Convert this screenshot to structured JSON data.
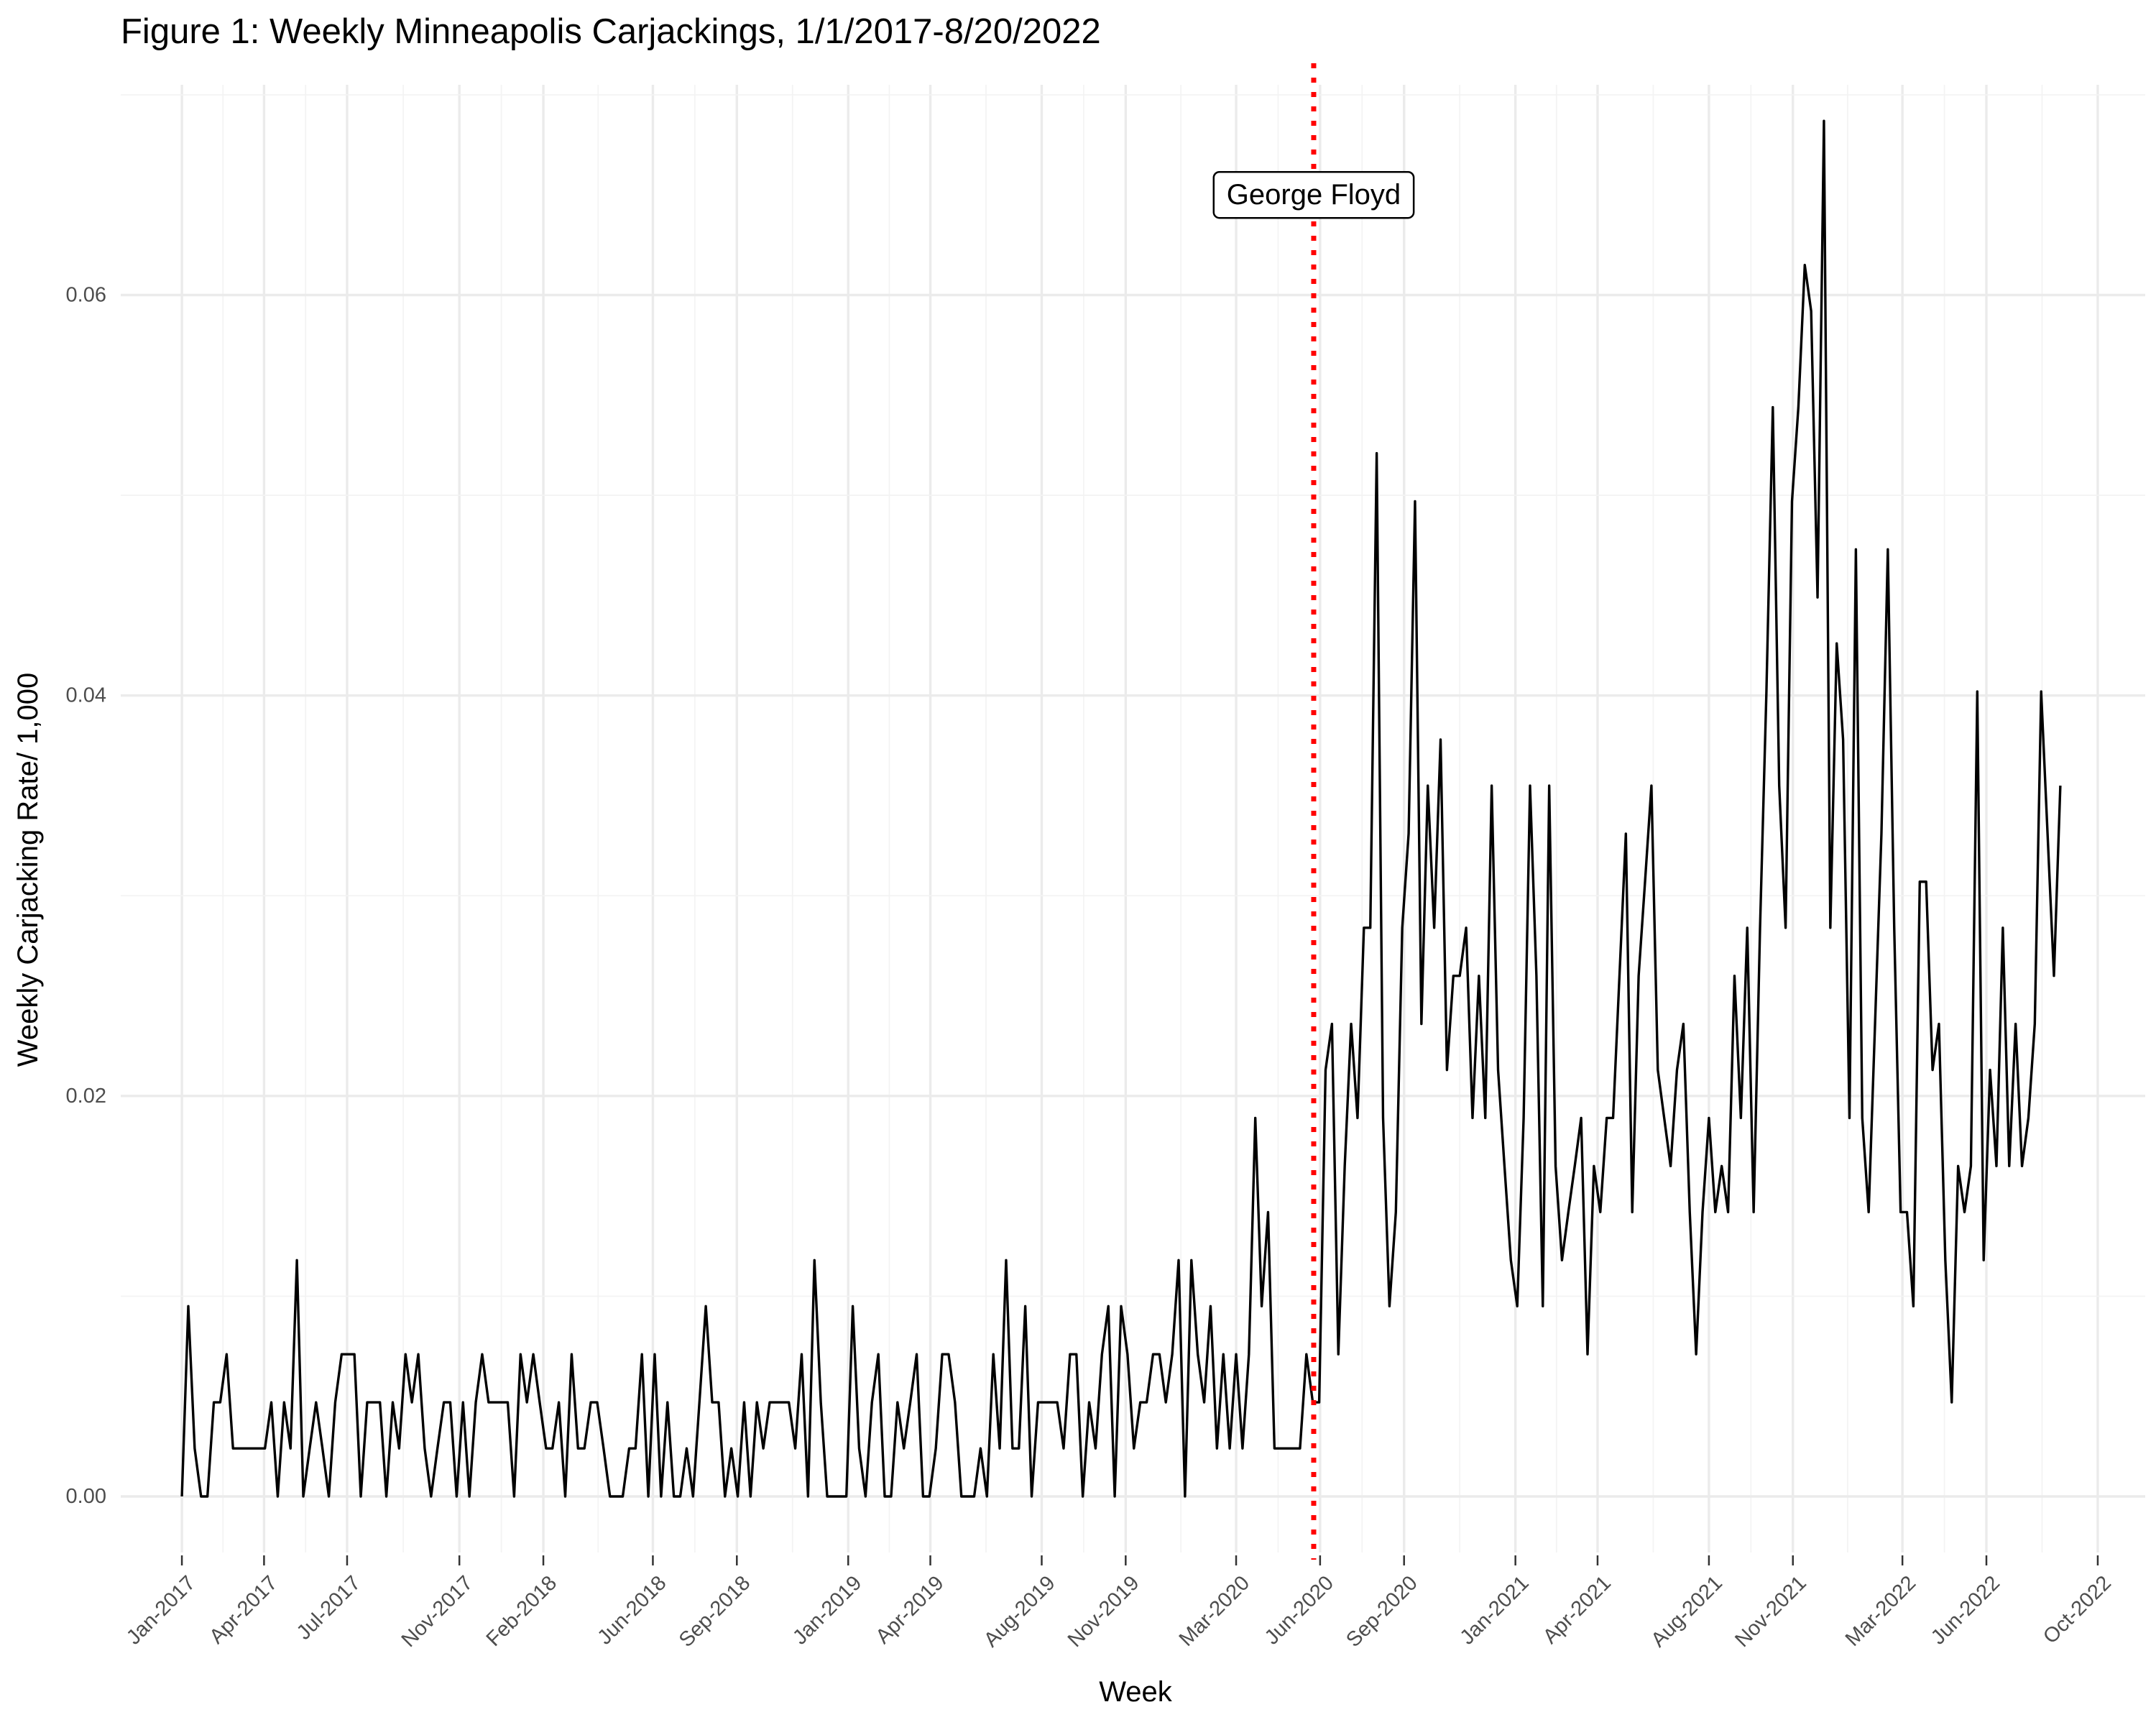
{
  "chart_data": {
    "type": "line",
    "title": "Figure 1: Weekly Minneapolis Carjackings, 1/1/2017-8/20/2022",
    "xlabel": "Week",
    "ylabel": "Weekly Carjacking Rate/ 1,000",
    "x_ticks": [
      "Jan-2017",
      "Apr-2017",
      "Jul-2017",
      "Nov-2017",
      "Feb-2018",
      "Jun-2018",
      "Sep-2018",
      "Jan-2019",
      "Apr-2019",
      "Aug-2019",
      "Nov-2019",
      "Mar-2020",
      "Jun-2020",
      "Sep-2020",
      "Jan-2021",
      "Apr-2021",
      "Aug-2021",
      "Nov-2021",
      "Mar-2022",
      "Jun-2022",
      "Oct-2022"
    ],
    "y_ticks": [
      "0.00",
      "0.02",
      "0.04",
      "0.06"
    ],
    "ylim": [
      -0.0028,
      0.0705
    ],
    "xlim": [
      "2016-10-26",
      "2022-11-22"
    ],
    "grid": true,
    "annotation": {
      "label": "George Floyd",
      "x": "2020-05-25",
      "y": 0.065,
      "line_color": "#ff0000",
      "line_style": "dotted"
    },
    "series": [
      {
        "color": "#000000",
        "start_date": "2017-01-01",
        "interval_days": 7,
        "values": [
          0,
          0.0095,
          0.0024,
          0,
          0,
          0.0047,
          0.0047,
          0.0071,
          0.0024,
          0.0024,
          0.0024,
          0.0024,
          0.0024,
          0.0024,
          0.0047,
          0,
          0.0047,
          0.0024,
          0.0118,
          0,
          0.0024,
          0.0047,
          0.0024,
          0,
          0.0047,
          0.0071,
          0.0071,
          0.0071,
          0,
          0.0047,
          0.0047,
          0.0047,
          0,
          0.0047,
          0.0024,
          0.0071,
          0.0047,
          0.0071,
          0.0024,
          0,
          0.0024,
          0.0047,
          0.0047,
          0,
          0.0047,
          0,
          0.0047,
          0.0071,
          0.0047,
          0.0047,
          0.0047,
          0.0047,
          0,
          0.0071,
          0.0047,
          0.0071,
          0.0047,
          0.0024,
          0.0024,
          0.0047,
          0,
          0.0071,
          0.0024,
          0.0024,
          0.0047,
          0.0047,
          0.0024,
          0,
          0,
          0,
          0.0024,
          0.0024,
          0.0071,
          0,
          0.0071,
          0,
          0.0047,
          0,
          0,
          0.0024,
          0,
          0.0047,
          0.0095,
          0.0047,
          0.0047,
          0,
          0.0024,
          0,
          0.0047,
          0,
          0.0047,
          0.0024,
          0.0047,
          0.0047,
          0.0047,
          0.0047,
          0.0024,
          0.0071,
          0,
          0.0118,
          0.0047,
          0,
          0,
          0,
          0,
          0.0095,
          0.0024,
          0,
          0.0047,
          0.0071,
          0,
          0,
          0.0047,
          0.0024,
          0.0047,
          0.0071,
          0,
          0,
          0.0024,
          0.0071,
          0.0071,
          0.0047,
          0,
          0,
          0,
          0.0024,
          0,
          0.0071,
          0.0024,
          0.0118,
          0.0024,
          0.0024,
          0.0095,
          0,
          0.0047,
          0.0047,
          0.0047,
          0.0047,
          0.0024,
          0.0071,
          0.0071,
          0,
          0.0047,
          0.0024,
          0.0071,
          0.0095,
          0,
          0.0095,
          0.0071,
          0.0024,
          0.0047,
          0.0047,
          0.0071,
          0.0071,
          0.0047,
          0.0071,
          0.0118,
          0,
          0.0118,
          0.0071,
          0.0047,
          0.0095,
          0.0024,
          0.0071,
          0.0024,
          0.0071,
          0.0024,
          0.0071,
          0.0189,
          0.0095,
          0.0142,
          0.0024,
          0.0024,
          0.0024,
          0.0024,
          0.0024,
          0.0071,
          0.0047,
          0.0047,
          0.0213,
          0.0236,
          0.0071,
          0.0165,
          0.0236,
          0.0189,
          0.0284,
          0.0284,
          0.0521,
          0.0189,
          0.0095,
          0.0142,
          0.0284,
          0.0331,
          0.0497,
          0.0236,
          0.0355,
          0.0284,
          0.0378,
          0.0213,
          0.026,
          0.026,
          0.0284,
          0.0189,
          0.026,
          0.0189,
          0.0355,
          0.0213,
          0.0165,
          0.0118,
          0.0095,
          0.0189,
          0.0355,
          0.026,
          0.0095,
          0.0355,
          0.0165,
          0.0118,
          0.0142,
          0.0165,
          0.0189,
          0.0071,
          0.0165,
          0.0142,
          0.0189,
          0.0189,
          0.026,
          0.0331,
          0.0142,
          0.026,
          0.0307,
          0.0355,
          0.0213,
          0.0189,
          0.0165,
          0.0213,
          0.0236,
          0.0142,
          0.0071,
          0.0142,
          0.0189,
          0.0142,
          0.0165,
          0.0142,
          0.026,
          0.0189,
          0.0284,
          0.0142,
          0.0284,
          0.0402,
          0.0544,
          0.0355,
          0.0284,
          0.0497,
          0.0544,
          0.0615,
          0.0592,
          0.0449,
          0.0687,
          0.0284,
          0.0426,
          0.0378,
          0.0189,
          0.0473,
          0.0189,
          0.0142,
          0.0236,
          0.0331,
          0.0473,
          0.0284,
          0.0142,
          0.0142,
          0.0095,
          0.0307,
          0.0307,
          0.0213,
          0.0236,
          0.0118,
          0.0047,
          0.0165,
          0.0142,
          0.0165,
          0.0402,
          0.0118,
          0.0213,
          0.0165,
          0.0284,
          0.0165,
          0.0236,
          0.0165,
          0.0189,
          0.0236,
          0.0402,
          0.0331,
          0.026,
          0.0355
        ]
      }
    ]
  }
}
